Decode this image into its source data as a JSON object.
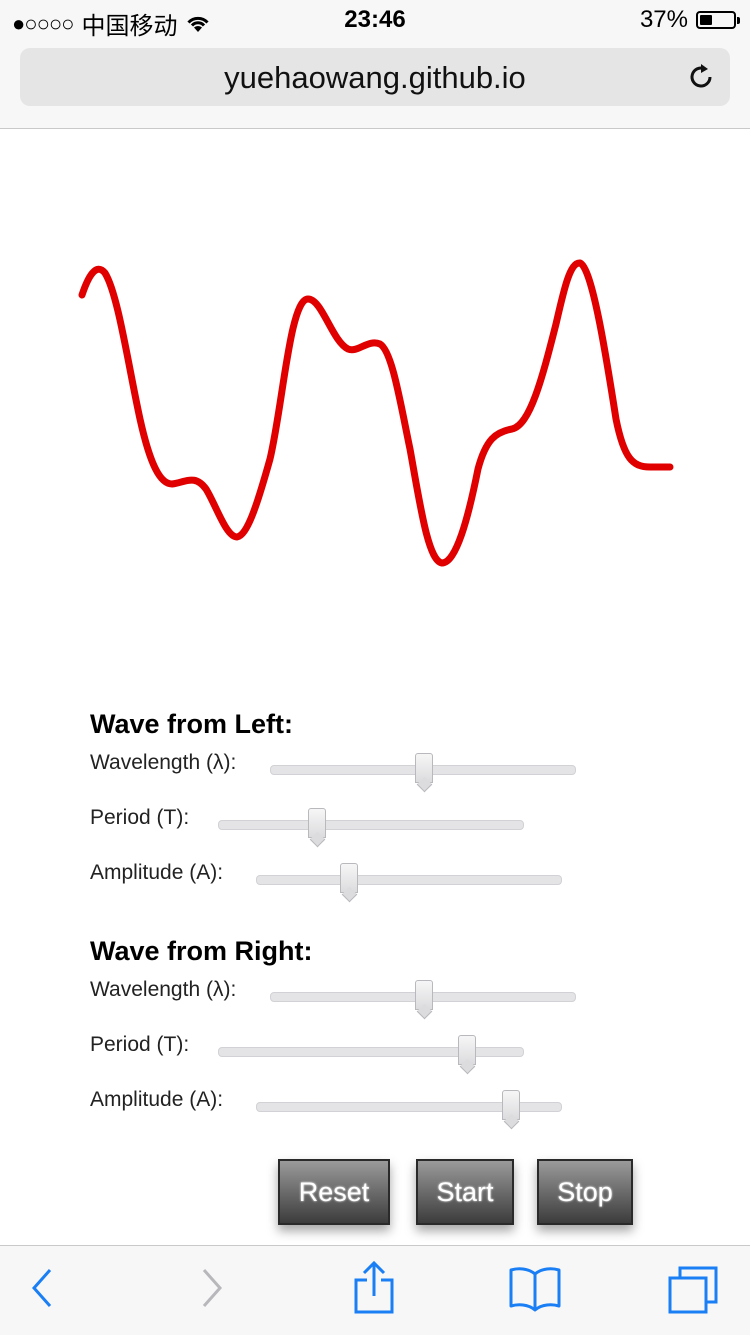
{
  "status_bar": {
    "signal": "●○○○○",
    "carrier": "中国移动",
    "time": "23:46",
    "battery_percent": "37%",
    "battery_level": 0.37
  },
  "browser": {
    "url": "yuehaowang.github.io",
    "reload_icon": "reload-icon"
  },
  "wave_color": "#e00000",
  "wave_from_left": {
    "title": "Wave from Left:",
    "wavelength_label": "Wavelength (λ):",
    "period_label": "Period (T):",
    "amplitude_label": "Amplitude (A):",
    "wavelength_value": 0.5,
    "period_value": 0.32,
    "amplitude_value": 0.3
  },
  "wave_from_right": {
    "title": "Wave from Right:",
    "wavelength_label": "Wavelength (λ):",
    "period_label": "Period (T):",
    "amplitude_label": "Amplitude (A):",
    "wavelength_value": 0.5,
    "period_value": 0.81,
    "amplitude_value": 0.83
  },
  "buttons": {
    "reset": "Reset",
    "start": "Start",
    "stop": "Stop"
  },
  "toolbar_icons": [
    "back-icon",
    "forward-icon",
    "share-icon",
    "bookmarks-icon",
    "tabs-icon"
  ]
}
